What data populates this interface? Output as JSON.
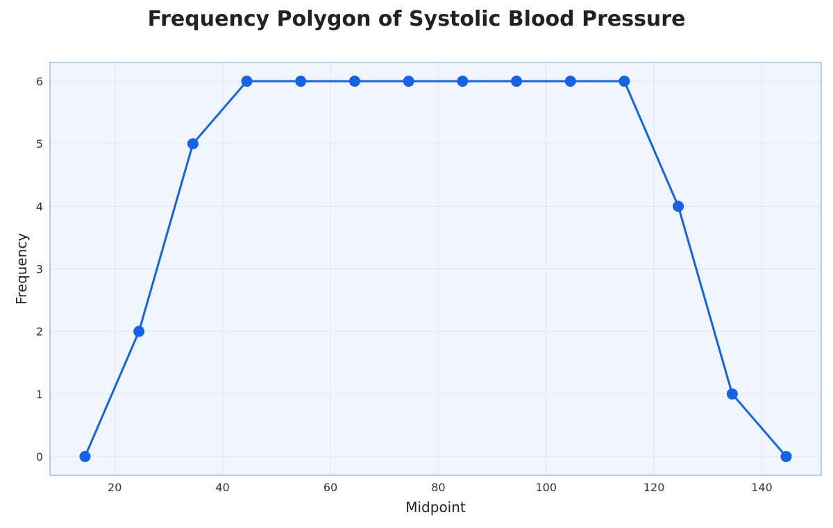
{
  "chart_data": {
    "type": "line",
    "title": "Frequency Polygon of Systolic Blood Pressure",
    "xlabel": "Midpoint",
    "ylabel": "Frequency",
    "x": [
      14.5,
      24.5,
      34.5,
      44.5,
      54.5,
      64.5,
      74.5,
      84.5,
      94.5,
      104.5,
      114.5,
      124.5,
      134.5,
      144.5
    ],
    "series": [
      {
        "values": [
          0,
          2,
          5,
          6,
          6,
          6,
          6,
          6,
          6,
          6,
          6,
          4,
          1,
          0
        ]
      }
    ],
    "xlim": [
      8,
      151
    ],
    "ylim": [
      -0.3,
      6.3
    ],
    "xticks": [
      20,
      40,
      60,
      80,
      100,
      120,
      140
    ],
    "yticks": [
      0,
      1,
      2,
      3,
      4,
      5,
      6
    ],
    "grid": true,
    "legend": "none",
    "colors": {
      "line": "#1463e6",
      "marker": "#1463e6",
      "plot_background": "#f0f6fd",
      "plot_border": "#9cc0ec",
      "grid": "#dde6f7"
    }
  }
}
